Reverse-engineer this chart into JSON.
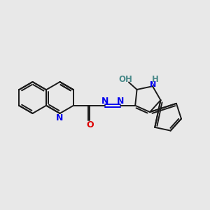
{
  "bg_color": "#e8e8e8",
  "bond_color": "#1a1a1a",
  "n_color": "#0000ee",
  "o_color": "#dd0000",
  "teal_color": "#4a8a8a",
  "lw": 1.4,
  "figsize": [
    3.0,
    3.0
  ],
  "dpi": 100,
  "xlim": [
    0,
    10
  ],
  "ylim": [
    0,
    10
  ]
}
